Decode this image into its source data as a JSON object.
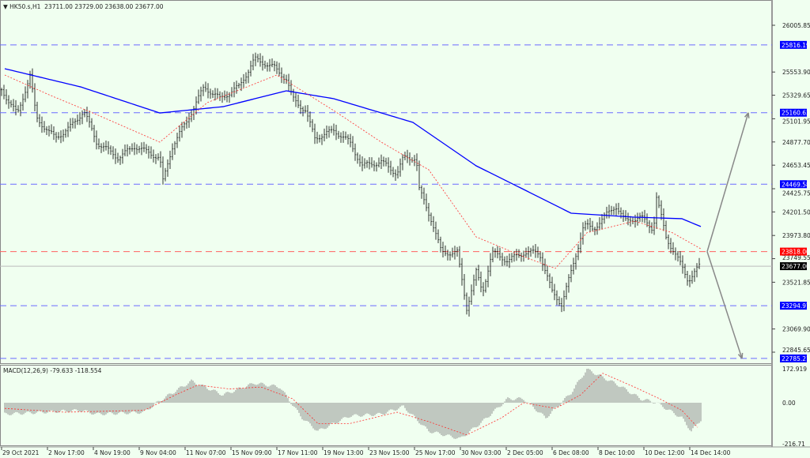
{
  "header": {
    "symbol": "HK50.s,H1",
    "open": "23711.00",
    "high": "23729.00",
    "low": "23638.00",
    "close": "23677.00"
  },
  "macd_label": {
    "name": "MACD(12,26,9)",
    "macd": "-79.633",
    "signal": "-118.554"
  },
  "chart_data": [
    {
      "type": "ohlc",
      "note_x": "bar index",
      "ylim": [
        22700,
        26150
      ],
      "y_ticks": [
        "26005.85",
        "25553.90",
        "25329.65",
        "25101.95",
        "24877.70",
        "24653.45",
        "24425.75",
        "24201.50",
        "23973.80",
        "23749.55",
        "23521.85",
        "23069.90",
        "22845.65"
      ],
      "x_ticks": [
        "29 Oct 2021",
        "2 Nov 17:00",
        "4 Nov 19:00",
        "9 Nov 04:00",
        "11 Nov 07:00",
        "15 Nov 09:00",
        "17 Nov 11:00",
        "19 Nov 13:00",
        "23 Nov 15:00",
        "25 Nov 17:00",
        "30 Nov 03:00",
        "2 Dec 05:00",
        "6 Dec 08:00",
        "8 Dec 10:00",
        "10 Dec 12:00",
        "14 Dec 14:00"
      ],
      "close_path": [
        [
          1,
          25334
        ],
        [
          5,
          25143
        ],
        [
          9,
          25525
        ],
        [
          11,
          25105
        ],
        [
          17,
          24914
        ],
        [
          22,
          25029
        ],
        [
          26,
          25181
        ],
        [
          30,
          24876
        ],
        [
          37,
          24724
        ],
        [
          42,
          24838
        ],
        [
          50,
          24724
        ],
        [
          51,
          24495
        ],
        [
          54,
          24838
        ],
        [
          59,
          25105
        ],
        [
          64,
          25410
        ],
        [
          69,
          25296
        ],
        [
          75,
          25410
        ],
        [
          80,
          25678
        ],
        [
          86,
          25601
        ],
        [
          90,
          25487
        ],
        [
          92,
          25296
        ],
        [
          96,
          25181
        ],
        [
          99,
          24914
        ],
        [
          105,
          24990
        ],
        [
          110,
          24876
        ],
        [
          114,
          24647
        ],
        [
          120,
          24685
        ],
        [
          125,
          24571
        ],
        [
          127,
          24724
        ],
        [
          131,
          24724
        ],
        [
          132,
          24419
        ],
        [
          136,
          24113
        ],
        [
          139,
          23808
        ],
        [
          144,
          23808
        ],
        [
          147,
          23274
        ],
        [
          150,
          23617
        ],
        [
          152,
          23426
        ],
        [
          155,
          23808
        ],
        [
          160,
          23731
        ],
        [
          165,
          23808
        ],
        [
          170,
          23808
        ],
        [
          174,
          23426
        ],
        [
          177,
          23311
        ],
        [
          180,
          23617
        ],
        [
          184,
          24075
        ],
        [
          187,
          24037
        ],
        [
          194,
          24266
        ],
        [
          197,
          24113
        ],
        [
          202,
          24151
        ],
        [
          206,
          24037
        ],
        [
          207,
          24342
        ],
        [
          210,
          23960
        ],
        [
          214,
          23731
        ],
        [
          217,
          23540
        ],
        [
          221,
          23693
        ]
      ],
      "ma_blue": [
        [
          1,
          25586
        ],
        [
          25,
          25410
        ],
        [
          50,
          25158
        ],
        [
          70,
          25219
        ],
        [
          90,
          25372
        ],
        [
          105,
          25296
        ],
        [
          130,
          25067
        ],
        [
          150,
          24647
        ],
        [
          165,
          24419
        ],
        [
          180,
          24189
        ],
        [
          200,
          24151
        ],
        [
          215,
          24136
        ],
        [
          221,
          24060
        ]
      ],
      "ma_red": [
        [
          1,
          25525
        ],
        [
          15,
          25334
        ],
        [
          30,
          25143
        ],
        [
          50,
          24876
        ],
        [
          65,
          25258
        ],
        [
          87,
          25525
        ],
        [
          105,
          25181
        ],
        [
          120,
          24876
        ],
        [
          135,
          24609
        ],
        [
          150,
          23960
        ],
        [
          165,
          23769
        ],
        [
          175,
          23655
        ],
        [
          185,
          24000
        ],
        [
          200,
          24113
        ],
        [
          212,
          24000
        ],
        [
          221,
          23845
        ]
      ],
      "levels": [
        {
          "value": "25816.19",
          "color": "#0000ff"
        },
        {
          "value": "25160.63",
          "color": "#0000ff"
        },
        {
          "value": "24469.58",
          "color": "#0000ff"
        },
        {
          "value": "23818.00",
          "color": "#ff0000"
        },
        {
          "value": "23677.00",
          "color": "#000000"
        },
        {
          "value": "23294.97",
          "color": "#0000ff"
        },
        {
          "value": "22785.21",
          "color": "#0000ff"
        }
      ],
      "arrows": [
        [
          [
            223,
            23818
          ],
          [
            236,
            25160
          ]
        ],
        [
          [
            223,
            23818
          ],
          [
            234,
            22785
          ]
        ]
      ]
    },
    {
      "type": "bar",
      "name": "MACD(12,26,9)",
      "y_ticks": [
        "172.919",
        "0.00",
        "-216.71"
      ],
      "histogram": [
        [
          1,
          -60
        ],
        [
          25,
          -40
        ],
        [
          30,
          -60
        ],
        [
          45,
          -50
        ],
        [
          50,
          10
        ],
        [
          60,
          110
        ],
        [
          70,
          40
        ],
        [
          80,
          100
        ],
        [
          88,
          80
        ],
        [
          95,
          -80
        ],
        [
          100,
          -150
        ],
        [
          110,
          -70
        ],
        [
          120,
          -60
        ],
        [
          127,
          -20
        ],
        [
          135,
          -150
        ],
        [
          145,
          -190
        ],
        [
          152,
          -100
        ],
        [
          160,
          20
        ],
        [
          165,
          20
        ],
        [
          172,
          -80
        ],
        [
          180,
          50
        ],
        [
          185,
          170
        ],
        [
          195,
          90
        ],
        [
          202,
          20
        ],
        [
          207,
          0
        ],
        [
          215,
          -80
        ],
        [
          218,
          -150
        ],
        [
          221,
          -90
        ]
      ],
      "signal": [
        [
          1,
          -30
        ],
        [
          20,
          -50
        ],
        [
          45,
          -40
        ],
        [
          55,
          40
        ],
        [
          62,
          90
        ],
        [
          72,
          70
        ],
        [
          82,
          80
        ],
        [
          92,
          20
        ],
        [
          100,
          -110
        ],
        [
          110,
          -110
        ],
        [
          125,
          -50
        ],
        [
          135,
          -100
        ],
        [
          147,
          -170
        ],
        [
          158,
          -80
        ],
        [
          165,
          0
        ],
        [
          175,
          -30
        ],
        [
          183,
          40
        ],
        [
          190,
          150
        ],
        [
          200,
          80
        ],
        [
          208,
          20
        ],
        [
          215,
          -40
        ],
        [
          220,
          -130
        ]
      ]
    }
  ],
  "colors": {
    "background": "#f0fff0",
    "bars": "#000000",
    "ma_blue": "#0000ff",
    "ma_red": "#ff0000",
    "levels": "#6666ff"
  }
}
